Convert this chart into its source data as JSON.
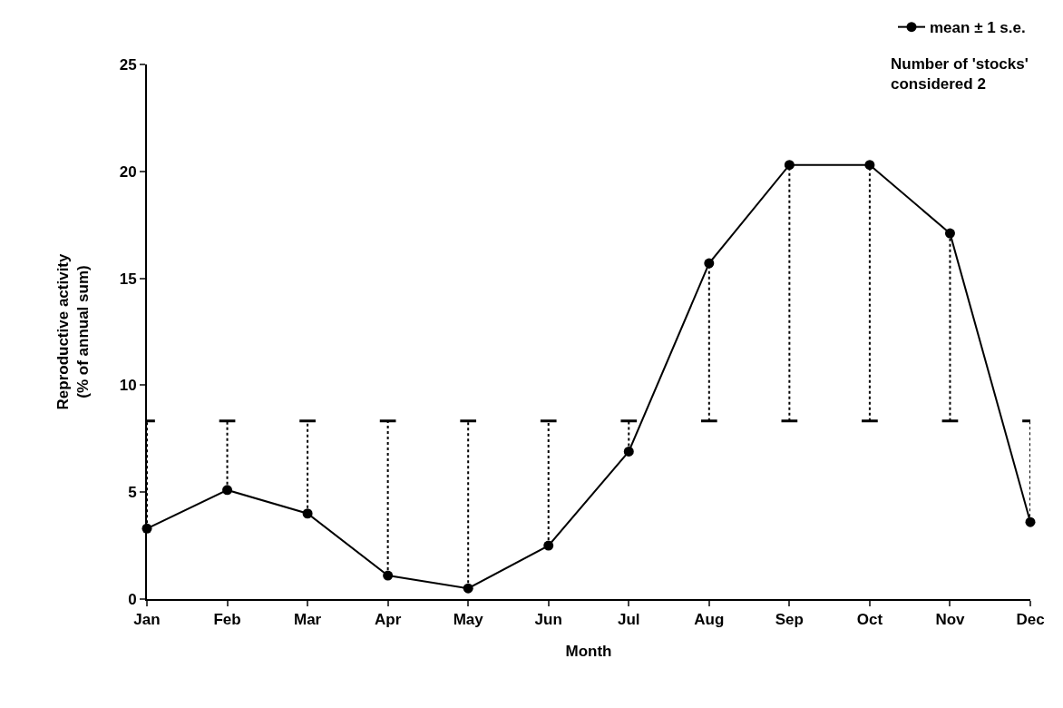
{
  "chart_data": {
    "type": "line",
    "xlabel": "Month",
    "ylabel": "Reproductive activity\n(% of annual sum)",
    "categories": [
      "Jan",
      "Feb",
      "Mar",
      "Apr",
      "May",
      "Jun",
      "Jul",
      "Aug",
      "Sep",
      "Oct",
      "Nov",
      "Dec"
    ],
    "series": [
      {
        "name": "mean ± 1 s.e.",
        "color": "#000000",
        "values": [
          3.3,
          5.1,
          4.0,
          1.1,
          0.5,
          2.5,
          6.9,
          15.7,
          20.3,
          20.3,
          17.1,
          3.6
        ],
        "errors": [
          [
            3.3,
            8.33
          ],
          [
            5.1,
            8.33
          ],
          [
            4.0,
            8.33
          ],
          [
            1.1,
            8.33
          ],
          [
            0.5,
            8.33
          ],
          [
            2.5,
            8.33
          ],
          [
            6.9,
            8.33
          ],
          [
            8.33,
            15.7
          ],
          [
            8.33,
            20.3
          ],
          [
            8.33,
            20.3
          ],
          [
            8.33,
            17.1
          ],
          [
            3.6,
            8.33
          ]
        ]
      }
    ],
    "ylim": [
      0,
      25
    ],
    "yticks": [
      0,
      5,
      10,
      15,
      20,
      25
    ],
    "annotations": [
      "Number of 'stocks'\nconsidered 2"
    ],
    "grid": false,
    "legend": "top right",
    "marker": "circle",
    "line_style": "solid"
  }
}
